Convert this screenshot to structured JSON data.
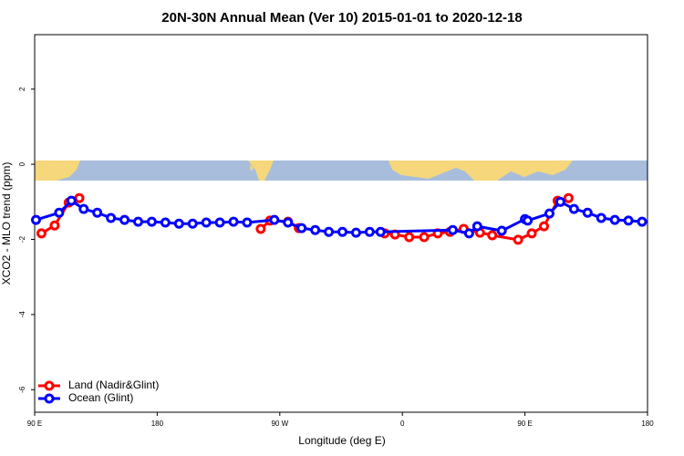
{
  "chart_data": {
    "type": "line",
    "title": "20N-30N Annual Mean (Ver 10)   2015-01-01 to 2020-12-18",
    "x_label": "Longitude (deg E)",
    "y_label": "XCO2 - MLO trend (ppm)",
    "xlim": [
      90,
      540
    ],
    "ylim": [
      -6.6,
      3.45
    ],
    "xticks": [
      {
        "value": 90,
        "label": "90 E"
      },
      180,
      {
        "value": 270,
        "label": "90 W"
      },
      {
        "value": 360,
        "label": "0"
      },
      {
        "value": 450,
        "label": "90 E"
      },
      {
        "value": 540,
        "label": "180"
      }
    ],
    "yticks": [
      -6,
      -4,
      -2,
      0,
      2
    ],
    "legend": "bottom-left",
    "series": [
      {
        "name": "Land (Nadir&Glint)",
        "color": "#ff0000",
        "x": [
          95,
          104.7,
          115,
          122.8,
          190,
          256,
          262.8,
          276,
          284,
          320,
          347,
          354.6,
          365,
          376,
          386,
          395,
          405,
          417,
          426,
          445,
          455,
          464,
          474,
          482
        ],
        "values": [
          -1.84,
          -1.63,
          -1.02,
          -0.9,
          null,
          -1.72,
          -1.5,
          -1.53,
          -1.7,
          null,
          -1.84,
          -1.87,
          -1.94,
          -1.94,
          -1.84,
          -1.8,
          -1.72,
          -1.82,
          -1.89,
          -2.01,
          -1.84,
          -1.65,
          -0.97,
          -0.9
        ]
      },
      {
        "name": "Ocean (Glint)",
        "color": "#0000ff",
        "x": [
          91,
          108,
          117,
          126,
          136,
          146,
          156,
          166,
          176,
          186,
          196,
          206,
          216,
          226,
          236,
          246,
          266,
          276,
          286,
          296,
          306,
          316,
          326,
          336,
          344,
          397,
          409,
          415,
          433,
          450,
          452,
          468,
          476,
          486,
          496,
          506,
          516,
          526,
          536
        ],
        "values": [
          -1.48,
          -1.29,
          -0.97,
          -1.19,
          -1.29,
          -1.43,
          -1.48,
          -1.53,
          -1.53,
          -1.55,
          -1.58,
          -1.58,
          -1.55,
          -1.55,
          -1.53,
          -1.55,
          -1.48,
          -1.55,
          -1.7,
          -1.75,
          -1.8,
          -1.8,
          -1.82,
          -1.8,
          -1.8,
          -1.75,
          -1.84,
          -1.65,
          -1.77,
          -1.46,
          -1.5,
          -1.31,
          -1.0,
          -1.19,
          -1.29,
          -1.43,
          -1.48,
          -1.5,
          -1.53
        ]
      }
    ]
  }
}
